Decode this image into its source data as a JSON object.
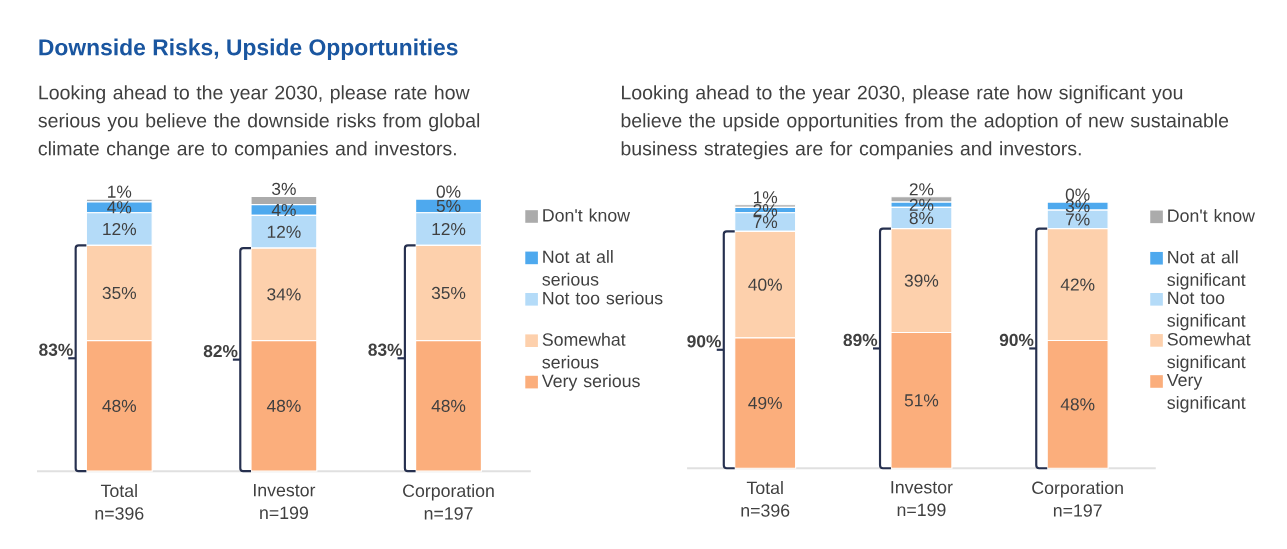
{
  "chart_data": [
    {
      "type": "bar",
      "title": "Downside Risks, Upside Opportunities",
      "subtitle": "Looking ahead to the year 2030, please rate how serious you believe the downside risks from global climate change are to companies and investors.",
      "categories": [
        "Total n=396",
        "Investor n=199",
        "Corporation n=197"
      ],
      "stacked": true,
      "legend": "right",
      "series": [
        {
          "name": "Very serious",
          "color": "#fbae7c",
          "values": [
            48,
            48,
            48
          ],
          "value_labels": [
            "48%",
            "48%",
            "48%"
          ]
        },
        {
          "name": "Somewhat serious",
          "color": "#fdd0ac",
          "values": [
            35,
            34,
            35
          ],
          "value_labels": [
            "35%",
            "34%",
            "35%"
          ]
        },
        {
          "name": "Not too serious",
          "color": "#b4dbf8",
          "values": [
            12,
            12,
            12
          ],
          "value_labels": [
            "12%",
            "12%",
            "12%"
          ]
        },
        {
          "name": "Not at all serious",
          "color": "#4ea9ee",
          "values": [
            4,
            4,
            5
          ],
          "value_labels": [
            "4%",
            "4%",
            "5%"
          ]
        },
        {
          "name": "Don't know",
          "color": "#ababab",
          "values": [
            1,
            3,
            0
          ],
          "value_labels": [
            "1%",
            "3%",
            "0%"
          ]
        }
      ],
      "annotations": [
        "83%",
        "82%",
        "83%"
      ]
    },
    {
      "type": "bar",
      "subtitle": "Looking ahead to the year 2030, please rate how significant you believe the upside opportunities from the adoption of new sustainable business strategies are for companies and investors.",
      "categories": [
        "Total n=396",
        "Investor n=199",
        "Corporation n=197"
      ],
      "stacked": true,
      "legend": "right",
      "series": [
        {
          "name": "Very significant",
          "color": "#fbae7c",
          "values": [
            49,
            51,
            48
          ],
          "value_labels": [
            "49%",
            "51%",
            "48%"
          ]
        },
        {
          "name": "Somewhat significant",
          "color": "#fdd0ac",
          "values": [
            40,
            39,
            42
          ],
          "value_labels": [
            "40%",
            "39%",
            "42%"
          ]
        },
        {
          "name": "Not too significant",
          "color": "#b4dbf8",
          "values": [
            7,
            8,
            7
          ],
          "value_labels": [
            "7%",
            "8%",
            "7%"
          ]
        },
        {
          "name": "Not at all significant",
          "color": "#4ea9ee",
          "values": [
            2,
            2,
            3
          ],
          "value_labels": [
            "2%",
            "2%",
            "3%"
          ]
        },
        {
          "name": "Don't know",
          "color": "#ababab",
          "values": [
            1,
            2,
            0
          ],
          "value_labels": [
            "1%",
            "2%",
            "0%"
          ]
        }
      ],
      "annotations": [
        "90%",
        "89%",
        "90%"
      ]
    }
  ]
}
